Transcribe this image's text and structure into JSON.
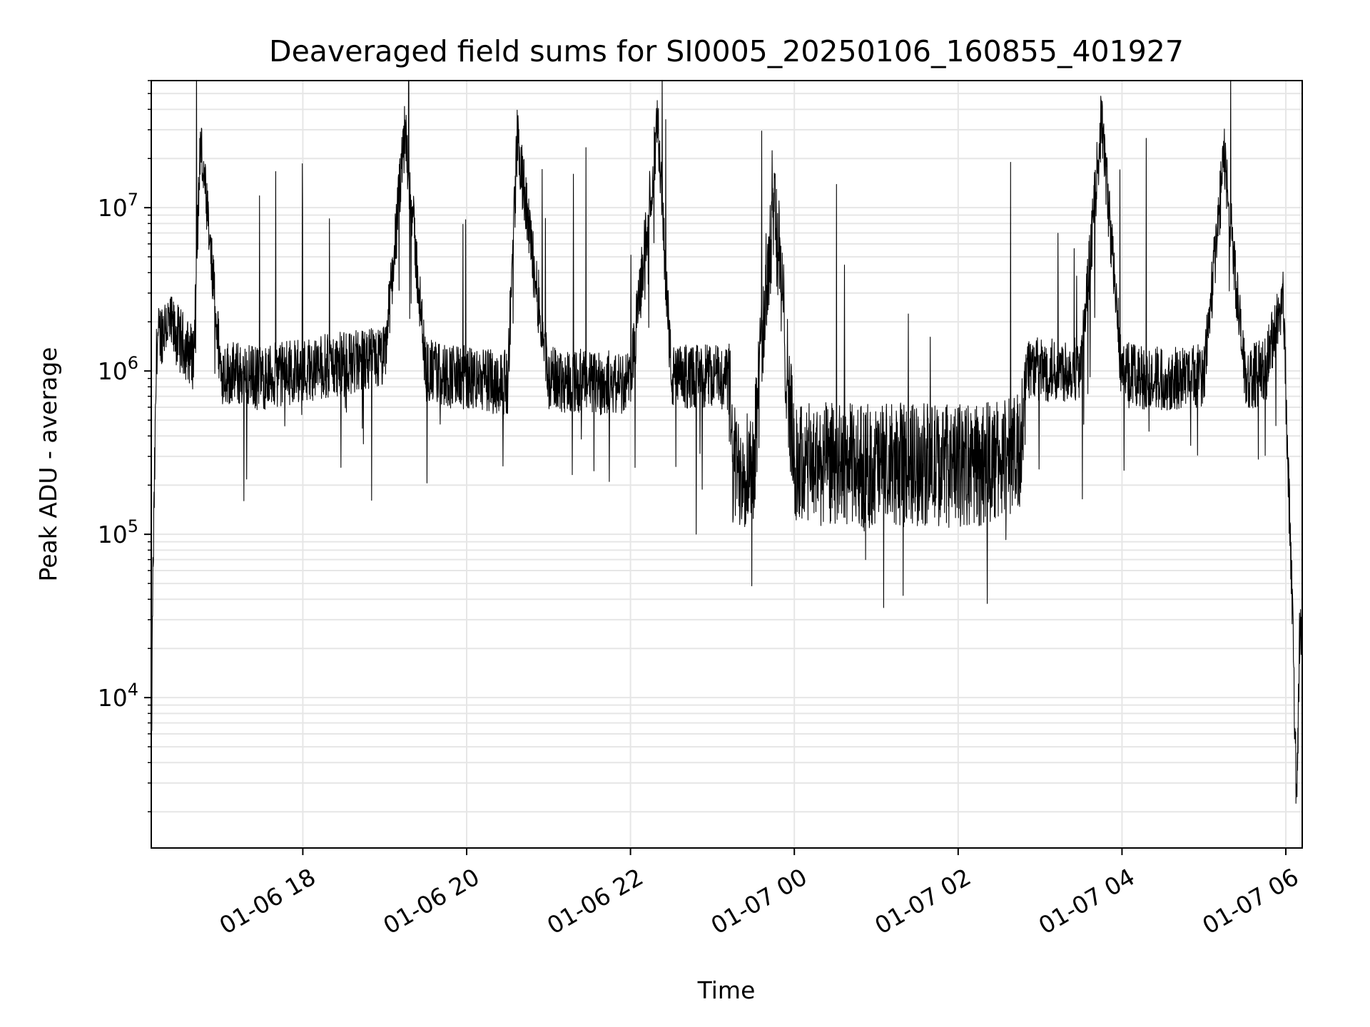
{
  "chart_data": {
    "type": "line",
    "title": "Deaveraged field sums for SI0005_20250106_160855_401927",
    "xlabel": "Time",
    "ylabel": "Peak ADU - average",
    "yscale": "log",
    "grid": true,
    "legend": "none",
    "line_color": "#000000",
    "grid_color": "#e6e6e6",
    "xlim": [
      "2025-01-06 16:09",
      "2025-01-07 06:12"
    ],
    "ylim": [
      1200,
      60000000
    ],
    "x_ticks": [
      {
        "t": "2025-01-06 18:00",
        "label": "01-06 18"
      },
      {
        "t": "2025-01-06 20:00",
        "label": "01-06 20"
      },
      {
        "t": "2025-01-06 22:00",
        "label": "01-06 22"
      },
      {
        "t": "2025-01-07 00:00",
        "label": "01-07 00"
      },
      {
        "t": "2025-01-07 02:00",
        "label": "01-07 02"
      },
      {
        "t": "2025-01-07 04:00",
        "label": "01-07 04"
      },
      {
        "t": "2025-01-07 06:00",
        "label": "01-07 06"
      }
    ],
    "y_ticks": [
      {
        "v": 10000,
        "base": "10",
        "exp": "4"
      },
      {
        "v": 100000,
        "base": "10",
        "exp": "5"
      },
      {
        "v": 1000000,
        "base": "10",
        "exp": "6"
      },
      {
        "v": 10000000,
        "base": "10",
        "exp": "7"
      }
    ],
    "series": [
      {
        "description_of_shape": "dense noisy trace; key points listed, noise band between them",
        "x": [
          "2025-01-06 16:09",
          "2025-01-06 16:10",
          "2025-01-06 16:13",
          "2025-01-06 16:20",
          "2025-01-06 16:40",
          "2025-01-06 16:45",
          "2025-01-06 17:00",
          "2025-01-06 17:30",
          "2025-01-06 17:55",
          "2025-01-06 18:30",
          "2025-01-06 19:00",
          "2025-01-06 19:15",
          "2025-01-06 19:30",
          "2025-01-06 20:00",
          "2025-01-06 20:30",
          "2025-01-06 20:37",
          "2025-01-06 21:00",
          "2025-01-06 21:30",
          "2025-01-06 22:00",
          "2025-01-06 22:20",
          "2025-01-06 22:30",
          "2025-01-06 23:00",
          "2025-01-06 23:12",
          "2025-01-06 23:15",
          "2025-01-06 23:30",
          "2025-01-06 23:45",
          "2025-01-07 00:00",
          "2025-01-07 00:30",
          "2025-01-07 01:00",
          "2025-01-07 01:30",
          "2025-01-07 02:00",
          "2025-01-07 02:30",
          "2025-01-07 02:45",
          "2025-01-07 02:50",
          "2025-01-07 03:00",
          "2025-01-07 03:30",
          "2025-01-07 03:45",
          "2025-01-07 04:00",
          "2025-01-07 04:30",
          "2025-01-07 05:00",
          "2025-01-07 05:15",
          "2025-01-07 05:30",
          "2025-01-07 05:45",
          "2025-01-07 05:58",
          "2025-01-07 06:02",
          "2025-01-07 06:05",
          "2025-01-07 06:08",
          "2025-01-07 06:10"
        ],
        "y": [
          3000,
          40000,
          1500000,
          2000000,
          1200000,
          26000000,
          1000000,
          900000,
          1000000,
          1100000,
          1200000,
          30000000,
          1000000,
          900000,
          850000,
          26000000,
          900000,
          850000,
          850000,
          32000000,
          900000,
          950000,
          900000,
          250000,
          280000,
          13000000,
          260000,
          270000,
          260000,
          270000,
          260000,
          280000,
          300000,
          1100000,
          1000000,
          1050000,
          35000000,
          950000,
          900000,
          950000,
          21000000,
          900000,
          1000000,
          3000000,
          200000,
          30000,
          2000,
          25000
        ]
      }
    ]
  }
}
